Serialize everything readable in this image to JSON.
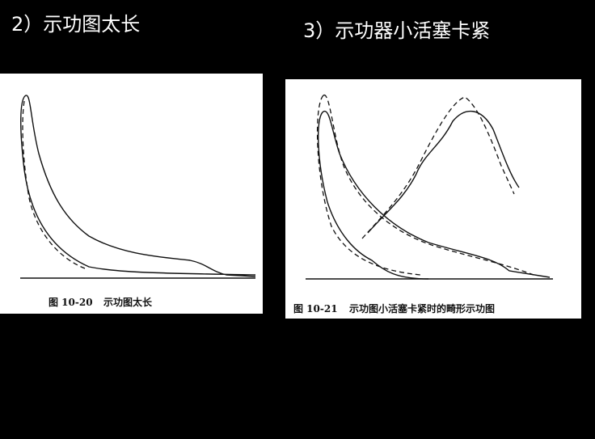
{
  "left": {
    "heading": "2）示功图太长",
    "caption_number": "图 10-20",
    "caption_text": "示功图太长"
  },
  "right": {
    "heading": "3）示功器小活塞卡紧",
    "caption_number": "图 10-21",
    "caption_text": "示功图小活塞卡紧时的畸形示功图"
  }
}
